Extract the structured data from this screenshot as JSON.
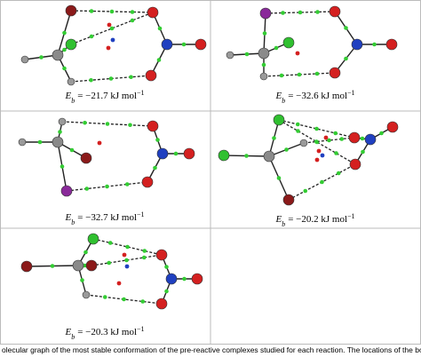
{
  "panels": [
    {
      "symbol": "E",
      "subscript": "b",
      "text": "= −21.7 kJ mol",
      "superscript": "−1"
    },
    {
      "symbol": "E",
      "subscript": "b",
      "text": "= −32.6 kJ mol",
      "superscript": "−1"
    },
    {
      "symbol": "E",
      "subscript": "b",
      "text": "= −32.7 kJ mol",
      "superscript": "−1"
    },
    {
      "symbol": "E",
      "subscript": "b",
      "text": "= −20.2 kJ mol",
      "superscript": "−1"
    },
    {
      "symbol": "E",
      "subscript": "b",
      "text": "= −20.3 kJ mol",
      "superscript": "−1"
    }
  ],
  "caption": "olecular graph of the most stable conformation of the pre-reactive complexes studied for each reaction. The locations of the bond C"
}
